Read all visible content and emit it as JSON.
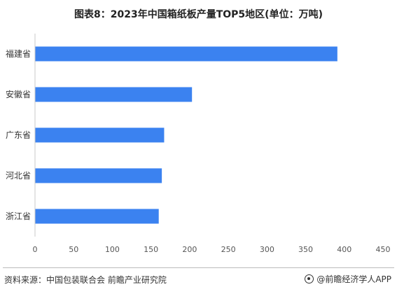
{
  "chart_data": {
    "type": "bar",
    "orientation": "horizontal",
    "title": "图表8：2023年中国箱纸板产量TOP5地区(单位：万吨)",
    "categories": [
      "福建省",
      "安徽省",
      "广东省",
      "河北省",
      "浙江省"
    ],
    "values": [
      391,
      203,
      167,
      164,
      160
    ],
    "xlim": [
      0,
      450
    ],
    "xticks": [
      0,
      50,
      100,
      150,
      200,
      250,
      300,
      350,
      400,
      450
    ],
    "bar_color": "#3b82f0",
    "grid": false
  },
  "footer": {
    "source": "资料来源：中国包装联合会 前瞻产业研究院",
    "brand": "@前瞻经济学人APP"
  }
}
